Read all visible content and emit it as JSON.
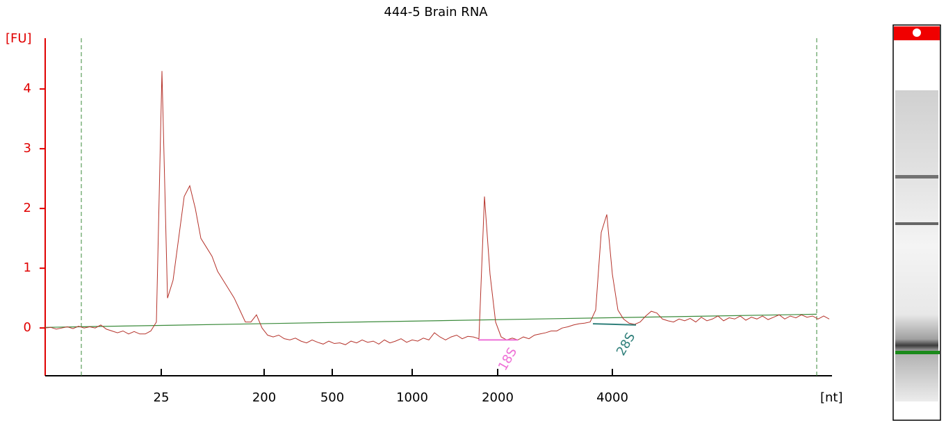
{
  "chart_data": {
    "type": "line",
    "title": "444-5 Brain RNA",
    "y_label": "[FU]",
    "x_label": "[nt]",
    "xlim": [
      0,
      141.5
    ],
    "ylim": [
      -0.8,
      4.85
    ],
    "yticks": [
      0,
      1,
      2,
      3,
      4
    ],
    "xticks": [
      {
        "value": 20.875,
        "label": "25"
      },
      {
        "value": 39.375,
        "label": "200"
      },
      {
        "value": 51.625,
        "label": "500"
      },
      {
        "value": 66,
        "label": "1000"
      },
      {
        "value": 81.375,
        "label": "2000"
      },
      {
        "value": 102,
        "label": "4000"
      }
    ],
    "axis_color": "#e00000",
    "series": [
      {
        "color": "#b5322a",
        "values": [
          0,
          0.01,
          -0.02,
          0,
          0.02,
          -0.01,
          0.03,
          0,
          0.02,
          0,
          0.05,
          -0.02,
          -0.05,
          -0.08,
          -0.05,
          -0.1,
          -0.06,
          -0.1,
          -0.1,
          -0.05,
          0.1,
          4.3,
          0.5,
          0.8,
          1.5,
          2.2,
          2.38,
          2.0,
          1.5,
          1.35,
          1.2,
          0.95,
          0.8,
          0.65,
          0.5,
          0.3,
          0.1,
          0.1,
          0.22,
          0,
          -0.12,
          -0.15,
          -0.12,
          -0.18,
          -0.2,
          -0.17,
          -0.22,
          -0.25,
          -0.2,
          -0.24,
          -0.27,
          -0.22,
          -0.26,
          -0.25,
          -0.28,
          -0.22,
          -0.25,
          -0.2,
          -0.24,
          -0.22,
          -0.27,
          -0.2,
          -0.25,
          -0.22,
          -0.18,
          -0.24,
          -0.2,
          -0.22,
          -0.17,
          -0.2,
          -0.08,
          -0.15,
          -0.2,
          -0.15,
          -0.12,
          -0.18,
          -0.14,
          -0.15,
          -0.18,
          2.2,
          0.9,
          0.1,
          -0.15,
          -0.2,
          -0.17,
          -0.2,
          -0.15,
          -0.18,
          -0.12,
          -0.1,
          -0.08,
          -0.05,
          -0.05,
          0,
          0.02,
          0.05,
          0.07,
          0.08,
          0.1,
          0.3,
          1.6,
          1.9,
          0.9,
          0.3,
          0.15,
          0.08,
          0.06,
          0.1,
          0.2,
          0.28,
          0.25,
          0.15,
          0.12,
          0.1,
          0.15,
          0.12,
          0.16,
          0.1,
          0.18,
          0.12,
          0.15,
          0.2,
          0.12,
          0.17,
          0.15,
          0.2,
          0.13,
          0.18,
          0.15,
          0.2,
          0.14,
          0.18,
          0.22,
          0.15,
          0.2,
          0.17,
          0.22,
          0.18,
          0.2,
          0.15,
          0.2,
          0.15
        ]
      }
    ],
    "baseline": {
      "color": "#3a8a3a",
      "x": [
        0,
        138.75
      ],
      "values": [
        0.01,
        0.23
      ]
    },
    "markers": [
      6.5,
      138.75
    ],
    "peak_labels": [
      {
        "text": "18S",
        "color": "#ee6fd6",
        "x": [
          77.875,
          85
        ],
        "values": [
          -0.2,
          -0.2
        ]
      },
      {
        "text": "28S",
        "color": "#2f7f7a",
        "x": [
          98.5,
          106.25
        ],
        "values": [
          0.07,
          0.05
        ]
      }
    ]
  }
}
